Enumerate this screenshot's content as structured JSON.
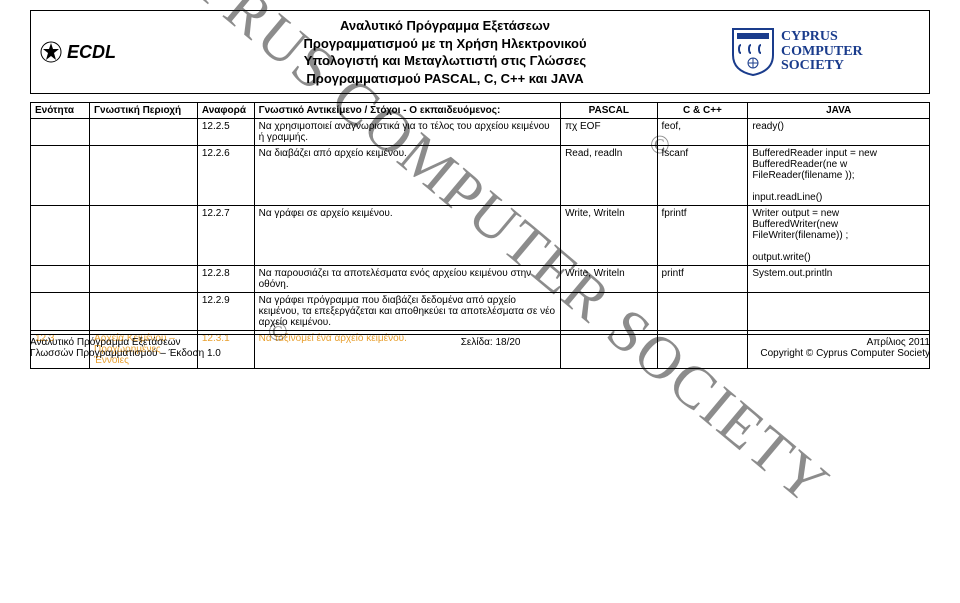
{
  "header": {
    "ecdl_label": "ECDL",
    "title_line1": "Αναλυτικό Πρόγραμμα Εξετάσεων",
    "title_line2": "Προγραμματισμού με τη Χρήση Ηλεκτρονικού",
    "title_line3": "Υπολογιστή και Μεταγλωττιστή στις Γλώσσες",
    "title_line4": "Προγραμματισμού PASCAL, C, C++ και JAVA",
    "ccs_line1": "CYPRUS",
    "ccs_line2": "COMPUTER",
    "ccs_line3": "SOCIETY"
  },
  "columns": {
    "c1": "Ενότητα",
    "c2": "Γνωστική Περιοχή",
    "c3": "Αναφορά",
    "c4": "Γνωστικό Αντικείμενο / Στόχοι - Ο εκπαιδευόμενος:",
    "c5": "PASCAL",
    "c6": "C & C++",
    "c7": "JAVA"
  },
  "rows": [
    {
      "ref": "12.2.5",
      "obj": "Να χρησιμοποιεί αναγνωριστικά για το τέλος του αρχείου κειμένου ή γραμμής.",
      "pascal": "πχ EOF",
      "c": "feof,",
      "java": "ready()"
    },
    {
      "ref": "12.2.6",
      "obj": "Να διαβάζει από αρχείο κειμένου.",
      "pascal": "Read, readln",
      "c": "fscanf",
      "java": "BufferedReader input = new BufferedReader(ne w FileReader(filename ));",
      "java_extra": "input.readLine()"
    },
    {
      "ref": "12.2.7",
      "obj": "Να γράφει σε αρχείο κειμένου.",
      "pascal": "Write, Writeln",
      "c": "fprintf",
      "java": "       Writer output = new BufferedWriter(new FileWriter(filename)) ;",
      "java_extra": "output.write()"
    },
    {
      "ref": "12.2.8",
      "obj": "Να παρουσιάζει τα αποτελέσματα ενός αρχείου κειμένου στην οθόνη.",
      "pascal": "Write, Writeln",
      "c": "printf",
      "java": "System.out.println"
    },
    {
      "ref": "12.2.9",
      "obj": "Να γράφει πρόγραμμα που διαβάζει δεδομένα από αρχείο κειμένου, τα επεξεργάζεται και αποθηκεύει τα αποτελέσματα σε νέο αρχείο κειμένου.",
      "pascal": "",
      "c": "",
      "java": ""
    },
    {
      "enot": "12.3",
      "gp": "Αρχεία Κειμένου – Προχωρημένες Έννοιες",
      "ref": "12.3.1",
      "obj": "Να ταξινομεί ένα αρχείο κειμένου.",
      "pascal": "",
      "c": "",
      "java": "",
      "orange": true
    }
  ],
  "watermark": "CYPRUS COMPUTER SOCIETY",
  "copyright_symbol": "©",
  "footer": {
    "left1": "Αναλυτικό Πρόγραμμα Εξετάσεων",
    "left2": "Γλωσσών Προγραμματισμού – Έκδοση 1.0",
    "mid": "Σελίδα: 18/20",
    "right1": "Απρίλιος 2011",
    "right2": "Copyright © Cyprus Computer Society"
  },
  "colors": {
    "border": "#000000",
    "orange": "#e8a030",
    "ccs_blue": "#1a3c8c"
  }
}
